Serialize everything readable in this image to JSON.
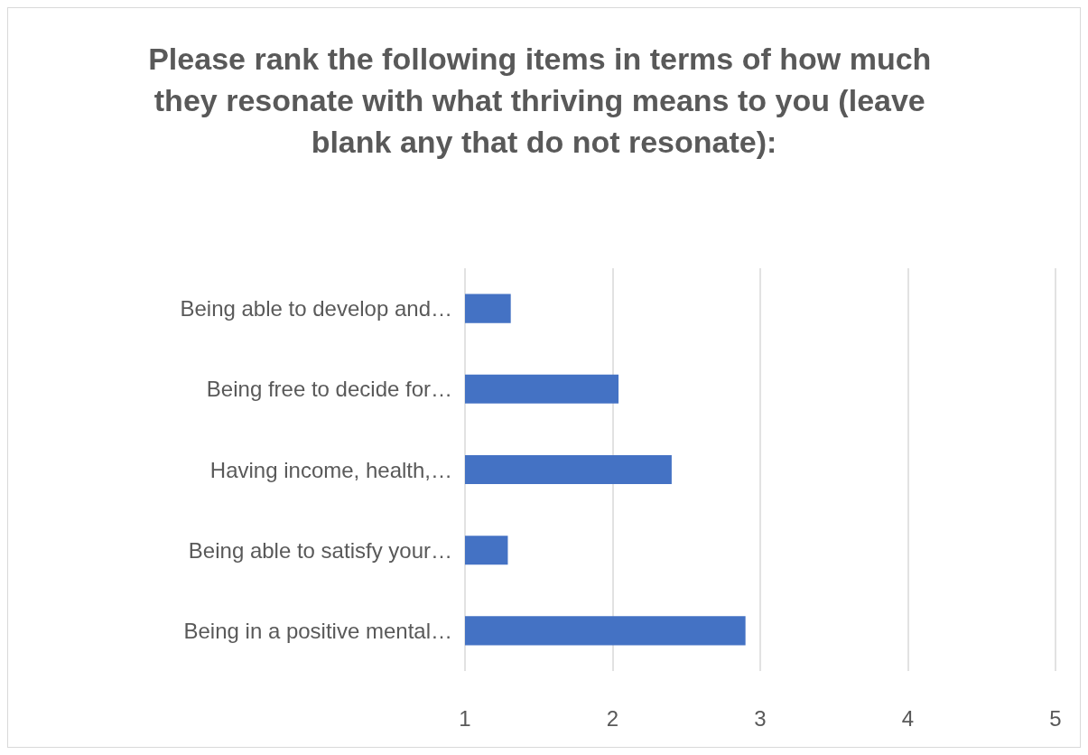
{
  "chart_data": {
    "type": "bar",
    "orientation": "horizontal",
    "title": "Please rank the following items in terms of how much they resonate with what thriving means to you (leave blank any that do not resonate):",
    "categories": [
      "Being able to develop and…",
      "Being free to decide for…",
      "Having income, health,…",
      "Being able to satisfy your…",
      "Being in a positive mental…"
    ],
    "values": [
      1.31,
      2.04,
      2.4,
      1.29,
      2.9
    ],
    "color": "#4472c4",
    "xlim": [
      1,
      5
    ],
    "xticks": [
      1,
      2,
      3,
      4,
      5
    ],
    "grid": "x"
  }
}
